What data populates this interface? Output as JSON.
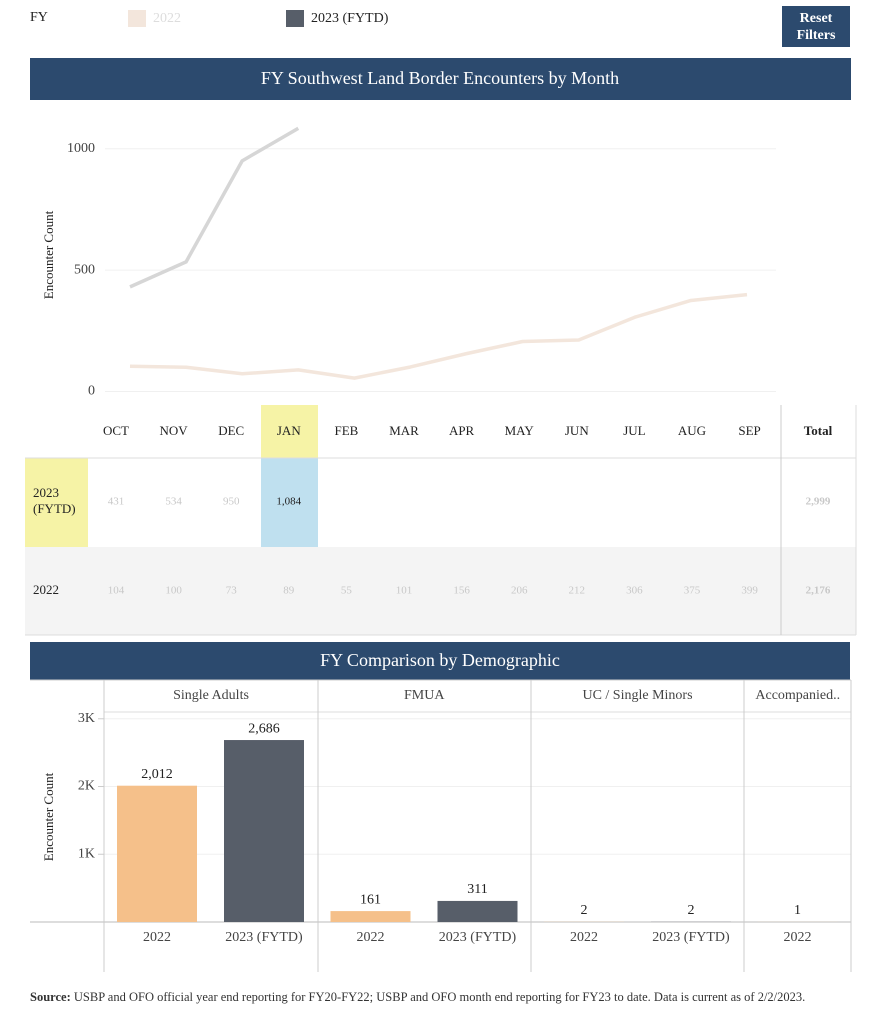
{
  "filters": {
    "label": "FY",
    "options": [
      {
        "name": "2022",
        "color": "#f3e6dc"
      },
      {
        "name": "2023 (FYTD)",
        "color": "#575e69"
      }
    ],
    "reset": "Reset Filters"
  },
  "chart_data": [
    {
      "type": "line",
      "title": "FY Southwest Land Border Encounters by Month",
      "y_label": "Encounter Count",
      "categories": [
        "OCT",
        "NOV",
        "DEC",
        "JAN",
        "FEB",
        "MAR",
        "APR",
        "MAY",
        "JUN",
        "JUL",
        "AUG",
        "SEP"
      ],
      "series": [
        {
          "name": "2023 (FYTD)",
          "color": "#d6d6d6",
          "values": [
            431,
            534,
            950,
            1084,
            null,
            null,
            null,
            null,
            null,
            null,
            null,
            null
          ]
        },
        {
          "name": "2022",
          "color": "#f3e6dc",
          "values": [
            104,
            100,
            73,
            89,
            55,
            101,
            156,
            206,
            212,
            306,
            375,
            399
          ]
        }
      ],
      "ylim": [
        -35,
        1180
      ],
      "yticks": [
        0,
        500,
        1000
      ],
      "grid": true
    },
    {
      "type": "bar",
      "title": "FY Comparison by Demographic",
      "y_label": "Encounter Count",
      "category_colors": [
        "#f5c08a",
        "#575e69"
      ],
      "groups": [
        {
          "name": "Single Adults",
          "categories": [
            "2022",
            "2023 (FYTD)"
          ],
          "values": [
            2012,
            2686
          ],
          "value_labels": [
            "2,012",
            "2,686"
          ]
        },
        {
          "name": "FMUA",
          "categories": [
            "2022",
            "2023 (FYTD)"
          ],
          "values": [
            161,
            311
          ]
        },
        {
          "name": "UC / Single Minors",
          "categories": [
            "2022",
            "2023 (FYTD)"
          ],
          "values": [
            2,
            2
          ]
        },
        {
          "name": "Accompanied..",
          "categories": [
            "2022"
          ],
          "values": [
            1
          ]
        }
      ],
      "ylim": [
        0,
        3100
      ],
      "yticks": [
        {
          "value": 1000,
          "label": "1K"
        },
        {
          "value": 2000,
          "label": "2K"
        },
        {
          "value": 3000,
          "label": "3K"
        }
      ],
      "grid": true
    }
  ],
  "table": {
    "columns": [
      "OCT",
      "NOV",
      "DEC",
      "JAN",
      "FEB",
      "MAR",
      "APR",
      "MAY",
      "JUN",
      "JUL",
      "AUG",
      "SEP",
      "Total"
    ],
    "rows": [
      {
        "label": "2023 (FYTD)",
        "cells": [
          "431",
          "534",
          "950",
          "1,084",
          "",
          "",
          "",
          "",
          "",
          "",
          "",
          ""
        ],
        "total": "2,999"
      },
      {
        "label": "2022",
        "cells": [
          "104",
          "100",
          "73",
          "89",
          "55",
          "101",
          "156",
          "206",
          "212",
          "306",
          "375",
          "399"
        ],
        "total": "2,176"
      }
    ]
  },
  "source": {
    "label": "Source:",
    "text": "USBP and OFO official year end reporting for FY20-FY22; USBP and OFO month end reporting for FY23 to date. Data is current as of 2/2/2023."
  }
}
